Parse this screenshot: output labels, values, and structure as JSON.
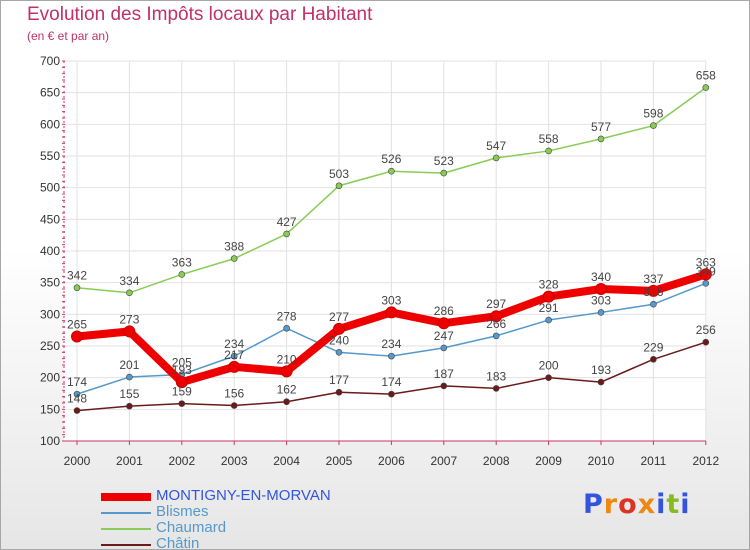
{
  "chart_data": {
    "type": "line",
    "title": "Evolution des Impôts locaux par Habitant",
    "subtitle": "(en € et par an)",
    "xlabel": "",
    "ylabel": "",
    "x": [
      "2000",
      "2001",
      "2002",
      "2003",
      "2004",
      "2005",
      "2006",
      "2007",
      "2008",
      "2009",
      "2010",
      "2011",
      "2012"
    ],
    "ylim": [
      100,
      700
    ],
    "yticks": [
      "100",
      "150",
      "200",
      "250",
      "300",
      "350",
      "400",
      "450",
      "500",
      "550",
      "600",
      "650",
      "700"
    ],
    "grid": true,
    "legend_position": "bottom-left",
    "series": [
      {
        "name": "Châtin",
        "color": "#6b1a1a",
        "values": [
          148,
          155,
          159,
          156,
          162,
          177,
          174,
          187,
          183,
          200,
          193,
          229,
          256
        ],
        "labels": [
          "148",
          "155",
          "159",
          "156",
          "162",
          "177",
          "174",
          "187",
          "183",
          "200",
          "193",
          "229",
          "256"
        ]
      },
      {
        "name": "Chaumard",
        "color": "#88cc55",
        "values": [
          342,
          334,
          363,
          388,
          427,
          503,
          526,
          523,
          547,
          558,
          577,
          598,
          658
        ],
        "labels": [
          "342",
          "334",
          "363",
          "388",
          "427",
          "503",
          "526",
          "523",
          "547",
          "558",
          "577",
          "598",
          "658"
        ]
      },
      {
        "name": "Blismes",
        "color": "#5599cc",
        "values": [
          174,
          201,
          205,
          234,
          278,
          240,
          234,
          247,
          266,
          291,
          303,
          316,
          349
        ],
        "labels": [
          "174",
          "201",
          "205",
          "234",
          "278",
          "240",
          "234",
          "247",
          "266",
          "291",
          "303",
          "316",
          "349"
        ]
      },
      {
        "name": "MONTIGNY-EN-MORVAN",
        "color": "#ee0000",
        "values": [
          265,
          273,
          193,
          217,
          210,
          277,
          303,
          286,
          297,
          328,
          340,
          337,
          363
        ],
        "labels": [
          "265",
          "273",
          "193",
          "217",
          "210",
          "277",
          "303",
          "286",
          "297",
          "328",
          "340",
          "337",
          "363"
        ]
      }
    ]
  },
  "legend": [
    {
      "name": "MONTIGNY-EN-MORVAN",
      "color": "#ee0000",
      "text_color": "#3355dd",
      "thickness": 8
    },
    {
      "name": "Blismes",
      "color": "#5599cc",
      "text_color": "#5599cc",
      "thickness": 2
    },
    {
      "name": "Chaumard",
      "color": "#88cc55",
      "text_color": "#5599cc",
      "thickness": 2
    },
    {
      "name": "Châtin",
      "color": "#6b1a1a",
      "text_color": "#5599cc",
      "thickness": 2
    }
  ],
  "logo": {
    "text": "Proxiti",
    "letter_colors": [
      "#3355dd",
      "#ee8811",
      "#dd3322",
      "#ee8811",
      "#3355dd",
      "#88bb22",
      "#3355dd"
    ]
  }
}
